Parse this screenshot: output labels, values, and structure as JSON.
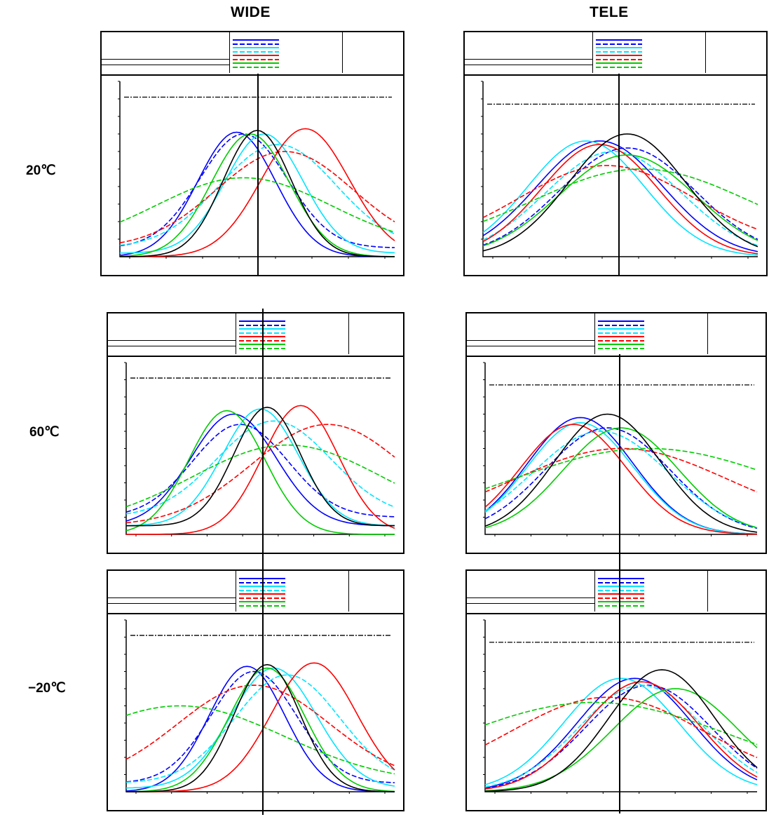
{
  "column_headers": [
    "WIDE",
    "TELE"
  ],
  "row_labels": [
    "20℃",
    "60℃",
    "−20℃"
  ],
  "colors": {
    "blue": "#0000ff",
    "cyan": "#00e5ff",
    "red": "#ff0000",
    "green": "#00cc00",
    "black": "#000000"
  },
  "chart_data": {
    "type": "line",
    "note_grid": "3 rows × 2 columns of through-focus MTF panels",
    "ylim": [
      0,
      1.0
    ],
    "xlim": [
      -0.1,
      0.1
    ],
    "y_ticks": [
      "1.0",
      "0.9",
      "0.8",
      "0.7",
      "0.6",
      "0.5",
      "0.4",
      "0.3",
      "0.2",
      "0.1"
    ],
    "reference_line_y": 0.9,
    "panels": [
      {
        "column": "WIDE",
        "row": "20℃",
        "ref": 0.91,
        "series": [
          {
            "color": "blue",
            "dash": false,
            "peak_x": -0.015,
            "peak_y": 0.71,
            "width": 0.04,
            "floor": 0.0
          },
          {
            "color": "blue",
            "dash": true,
            "peak_x": -0.01,
            "peak_y": 0.7,
            "width": 0.045,
            "floor": 0.05
          },
          {
            "color": "cyan",
            "dash": false,
            "peak_x": 0.005,
            "peak_y": 0.7,
            "width": 0.04,
            "floor": 0.02
          },
          {
            "color": "cyan",
            "dash": true,
            "peak_x": 0.015,
            "peak_y": 0.64,
            "width": 0.06,
            "floor": 0.05
          },
          {
            "color": "red",
            "dash": false,
            "peak_x": 0.035,
            "peak_y": 0.73,
            "width": 0.045,
            "floor": 0.0
          },
          {
            "color": "red",
            "dash": true,
            "peak_x": 0.02,
            "peak_y": 0.6,
            "width": 0.07,
            "floor": 0.05
          },
          {
            "color": "green",
            "dash": false,
            "peak_x": -0.005,
            "peak_y": 0.7,
            "width": 0.04,
            "floor": 0.0
          },
          {
            "color": "green",
            "dash": true,
            "peak_x": -0.01,
            "peak_y": 0.45,
            "width": 0.09,
            "floor": 0.05
          },
          {
            "color": "black",
            "dash": false,
            "peak_x": 0.0,
            "peak_y": 0.72,
            "width": 0.035,
            "floor": 0.0
          }
        ]
      },
      {
        "column": "TELE",
        "row": "20℃",
        "ref": 0.87,
        "series": [
          {
            "color": "blue",
            "dash": false,
            "peak_x": -0.015,
            "peak_y": 0.66,
            "width": 0.065,
            "floor": 0.0
          },
          {
            "color": "blue",
            "dash": true,
            "peak_x": 0.005,
            "peak_y": 0.62,
            "width": 0.07,
            "floor": 0.0
          },
          {
            "color": "cyan",
            "dash": false,
            "peak_x": -0.025,
            "peak_y": 0.66,
            "width": 0.06,
            "floor": 0.0
          },
          {
            "color": "cyan",
            "dash": true,
            "peak_x": -0.005,
            "peak_y": 0.6,
            "width": 0.07,
            "floor": 0.0
          },
          {
            "color": "red",
            "dash": false,
            "peak_x": -0.015,
            "peak_y": 0.64,
            "width": 0.06,
            "floor": 0.0
          },
          {
            "color": "red",
            "dash": true,
            "peak_x": -0.01,
            "peak_y": 0.52,
            "width": 0.09,
            "floor": 0.05
          },
          {
            "color": "green",
            "dash": false,
            "peak_x": 0.005,
            "peak_y": 0.58,
            "width": 0.07,
            "floor": 0.0
          },
          {
            "color": "green",
            "dash": true,
            "peak_x": 0.015,
            "peak_y": 0.5,
            "width": 0.11,
            "floor": 0.05
          },
          {
            "color": "black",
            "dash": false,
            "peak_x": 0.005,
            "peak_y": 0.7,
            "width": 0.06,
            "floor": 0.0
          }
        ]
      },
      {
        "column": "WIDE",
        "row": "60℃",
        "ref": 0.91,
        "series": [
          {
            "color": "blue",
            "dash": false,
            "peak_x": -0.02,
            "peak_y": 0.7,
            "width": 0.045,
            "floor": 0.05
          },
          {
            "color": "blue",
            "dash": true,
            "peak_x": -0.015,
            "peak_y": 0.64,
            "width": 0.05,
            "floor": 0.1
          },
          {
            "color": "cyan",
            "dash": false,
            "peak_x": 0.0,
            "peak_y": 0.73,
            "width": 0.04,
            "floor": 0.05
          },
          {
            "color": "cyan",
            "dash": true,
            "peak_x": 0.01,
            "peak_y": 0.66,
            "width": 0.06,
            "floor": 0.1
          },
          {
            "color": "red",
            "dash": false,
            "peak_x": 0.03,
            "peak_y": 0.75,
            "width": 0.04,
            "floor": 0.0
          },
          {
            "color": "red",
            "dash": true,
            "peak_x": 0.05,
            "peak_y": 0.64,
            "width": 0.08,
            "floor": 0.05
          },
          {
            "color": "green",
            "dash": false,
            "peak_x": -0.025,
            "peak_y": 0.72,
            "width": 0.04,
            "floor": 0.0
          },
          {
            "color": "green",
            "dash": true,
            "peak_x": 0.02,
            "peak_y": 0.52,
            "width": 0.1,
            "floor": 0.05
          },
          {
            "color": "black",
            "dash": false,
            "peak_x": 0.005,
            "peak_y": 0.74,
            "width": 0.035,
            "floor": 0.05
          }
        ]
      },
      {
        "column": "TELE",
        "row": "60℃",
        "ref": 0.87,
        "series": [
          {
            "color": "blue",
            "dash": false,
            "peak_x": -0.03,
            "peak_y": 0.68,
            "width": 0.055,
            "floor": 0.0
          },
          {
            "color": "blue",
            "dash": true,
            "peak_x": -0.01,
            "peak_y": 0.62,
            "width": 0.065,
            "floor": 0.0
          },
          {
            "color": "cyan",
            "dash": false,
            "peak_x": -0.03,
            "peak_y": 0.65,
            "width": 0.055,
            "floor": 0.0
          },
          {
            "color": "cyan",
            "dash": true,
            "peak_x": -0.015,
            "peak_y": 0.6,
            "width": 0.07,
            "floor": 0.0
          },
          {
            "color": "red",
            "dash": false,
            "peak_x": -0.035,
            "peak_y": 0.64,
            "width": 0.055,
            "floor": 0.0
          },
          {
            "color": "red",
            "dash": true,
            "peak_x": 0.0,
            "peak_y": 0.5,
            "width": 0.11,
            "floor": 0.05
          },
          {
            "color": "green",
            "dash": false,
            "peak_x": 0.0,
            "peak_y": 0.62,
            "width": 0.06,
            "floor": 0.0
          },
          {
            "color": "green",
            "dash": true,
            "peak_x": 0.02,
            "peak_y": 0.5,
            "width": 0.14,
            "floor": 0.05
          },
          {
            "color": "black",
            "dash": false,
            "peak_x": -0.01,
            "peak_y": 0.7,
            "width": 0.055,
            "floor": 0.0
          }
        ]
      },
      {
        "column": "WIDE",
        "row": "−20℃",
        "ref": 0.91,
        "series": [
          {
            "color": "blue",
            "dash": false,
            "peak_x": -0.01,
            "peak_y": 0.73,
            "width": 0.04,
            "floor": 0.0
          },
          {
            "color": "blue",
            "dash": true,
            "peak_x": -0.005,
            "peak_y": 0.7,
            "width": 0.045,
            "floor": 0.05
          },
          {
            "color": "cyan",
            "dash": false,
            "peak_x": 0.01,
            "peak_y": 0.72,
            "width": 0.045,
            "floor": 0.02
          },
          {
            "color": "cyan",
            "dash": true,
            "peak_x": 0.02,
            "peak_y": 0.68,
            "width": 0.055,
            "floor": 0.05
          },
          {
            "color": "red",
            "dash": false,
            "peak_x": 0.04,
            "peak_y": 0.75,
            "width": 0.045,
            "floor": 0.0
          },
          {
            "color": "red",
            "dash": true,
            "peak_x": -0.005,
            "peak_y": 0.62,
            "width": 0.08,
            "floor": 0.05
          },
          {
            "color": "green",
            "dash": false,
            "peak_x": 0.005,
            "peak_y": 0.72,
            "width": 0.04,
            "floor": 0.0
          },
          {
            "color": "green",
            "dash": true,
            "peak_x": -0.06,
            "peak_y": 0.5,
            "width": 0.11,
            "floor": 0.05
          },
          {
            "color": "black",
            "dash": false,
            "peak_x": 0.005,
            "peak_y": 0.74,
            "width": 0.035,
            "floor": 0.0
          }
        ]
      },
      {
        "column": "TELE",
        "row": "−20℃",
        "ref": 0.87,
        "series": [
          {
            "color": "blue",
            "dash": false,
            "peak_x": 0.01,
            "peak_y": 0.66,
            "width": 0.06,
            "floor": 0.0
          },
          {
            "color": "blue",
            "dash": true,
            "peak_x": 0.02,
            "peak_y": 0.62,
            "width": 0.065,
            "floor": 0.0
          },
          {
            "color": "cyan",
            "dash": false,
            "peak_x": 0.0,
            "peak_y": 0.66,
            "width": 0.06,
            "floor": 0.0
          },
          {
            "color": "cyan",
            "dash": true,
            "peak_x": 0.015,
            "peak_y": 0.62,
            "width": 0.065,
            "floor": 0.0
          },
          {
            "color": "red",
            "dash": false,
            "peak_x": 0.015,
            "peak_y": 0.64,
            "width": 0.06,
            "floor": 0.0
          },
          {
            "color": "red",
            "dash": true,
            "peak_x": -0.01,
            "peak_y": 0.55,
            "width": 0.1,
            "floor": 0.05
          },
          {
            "color": "green",
            "dash": false,
            "peak_x": 0.04,
            "peak_y": 0.6,
            "width": 0.065,
            "floor": 0.0
          },
          {
            "color": "green",
            "dash": true,
            "peak_x": -0.02,
            "peak_y": 0.52,
            "width": 0.14,
            "floor": 0.05
          },
          {
            "color": "black",
            "dash": false,
            "peak_x": 0.03,
            "peak_y": 0.71,
            "width": 0.055,
            "floor": 0.0
          }
        ]
      }
    ]
  }
}
